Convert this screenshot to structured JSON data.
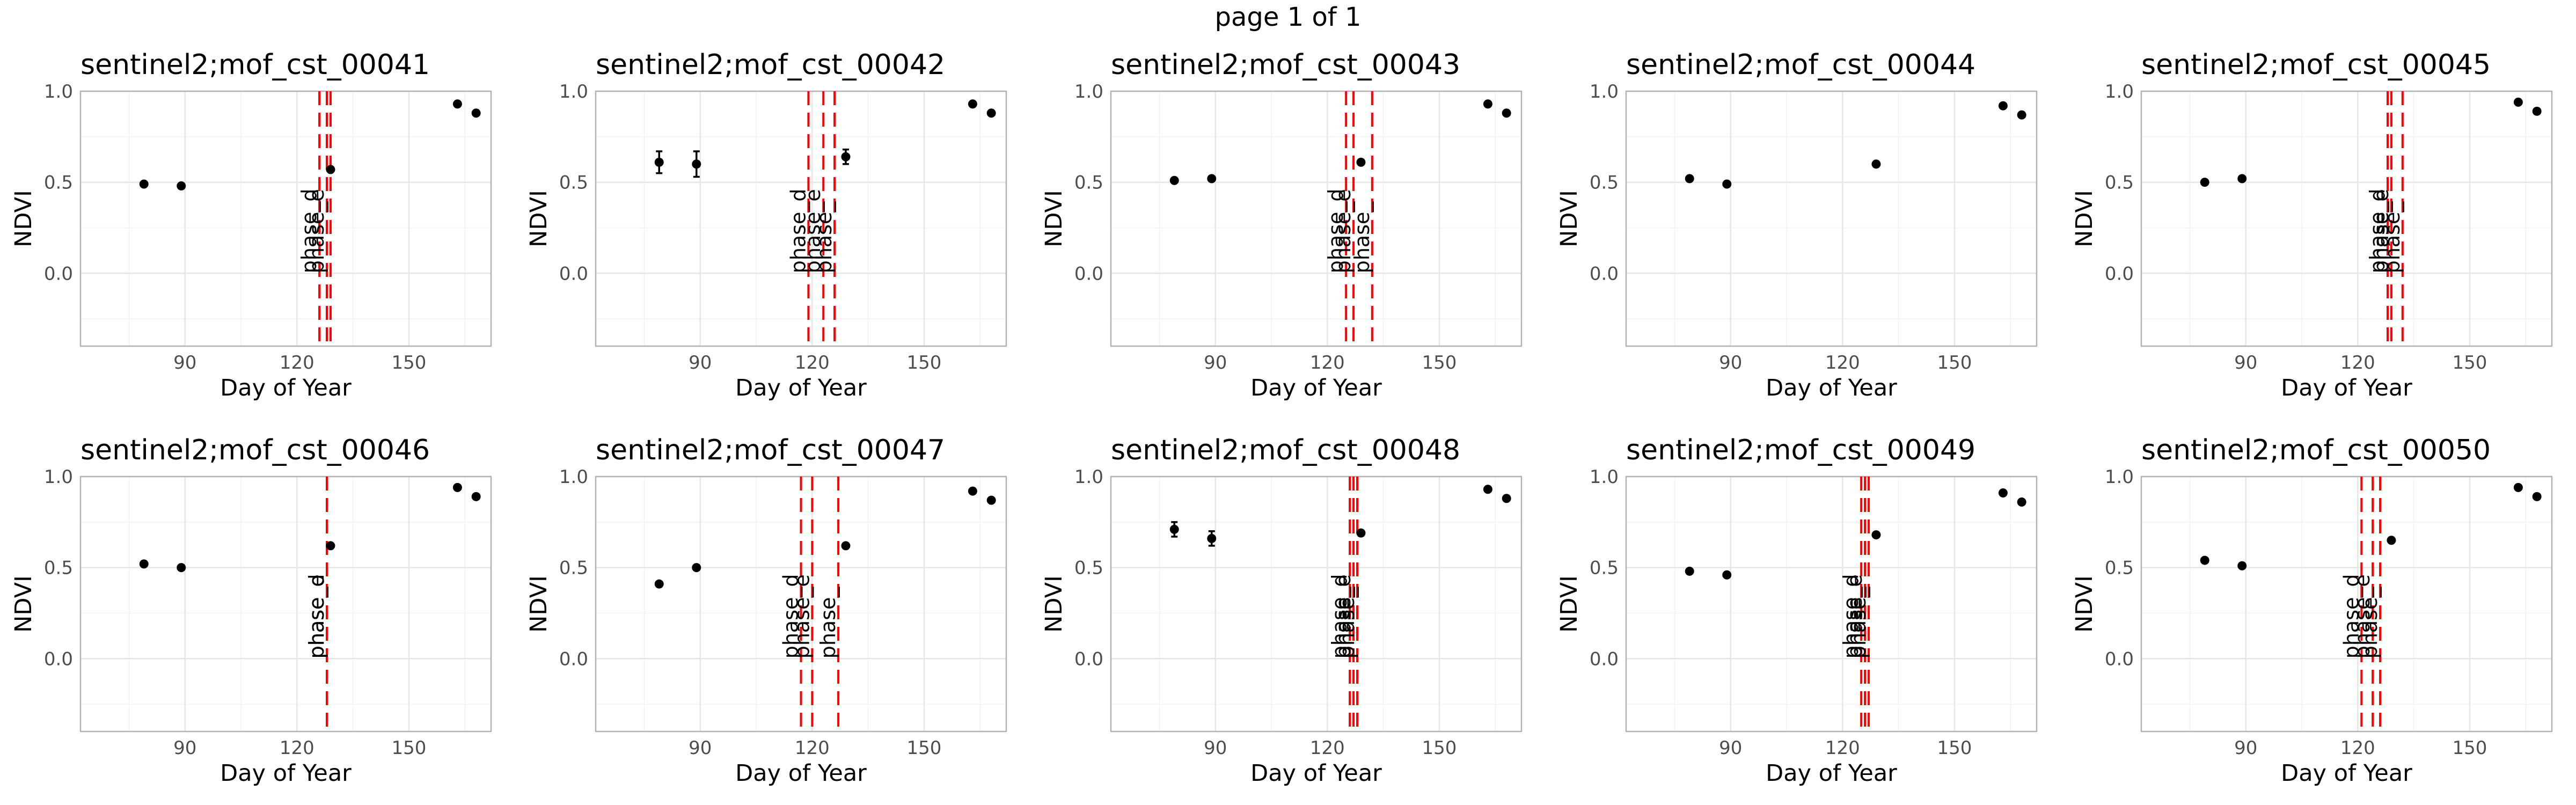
{
  "page_title": "page 1 of 1",
  "colors": {
    "vline": "#ff0000",
    "point": "#000000",
    "grid_major": "#e6e6e6",
    "grid_minor": "#f2f2f2",
    "panel_border": "#b3b3b3"
  },
  "chart_data": [
    {
      "type": "scatter",
      "title": "sentinel2;mof_cst_00041",
      "xlabel": "Day of Year",
      "ylabel": "NDVI",
      "xlim": [
        62,
        172
      ],
      "ylim": [
        -0.4,
        1.0
      ],
      "xticks": [
        90,
        120,
        150
      ],
      "yticks": [
        0.0,
        0.5,
        1.0
      ],
      "grid": true,
      "x": [
        79,
        89,
        129,
        163,
        168
      ],
      "y": [
        0.49,
        0.48,
        0.57,
        0.93,
        0.88
      ],
      "yerr": [
        0,
        0,
        0,
        0,
        0
      ],
      "vlines": [
        {
          "x": 126,
          "label": "phase_d"
        },
        {
          "x": 128,
          "label": "phase_e"
        },
        {
          "x": 129,
          "label": ""
        }
      ]
    },
    {
      "type": "scatter",
      "title": "sentinel2;mof_cst_00042",
      "xlabel": "Day of Year",
      "ylabel": "NDVI",
      "xlim": [
        62,
        172
      ],
      "ylim": [
        -0.4,
        1.0
      ],
      "xticks": [
        90,
        120,
        150
      ],
      "yticks": [
        0.0,
        0.5,
        1.0
      ],
      "grid": true,
      "x": [
        79,
        89,
        129,
        163,
        168
      ],
      "y": [
        0.61,
        0.6,
        0.64,
        0.93,
        0.88
      ],
      "yerr": [
        0.06,
        0.07,
        0.04,
        0,
        0
      ],
      "vlines": [
        {
          "x": 119,
          "label": "phase_d"
        },
        {
          "x": 123,
          "label": "phase_e"
        },
        {
          "x": 126,
          "label": "phase_"
        }
      ]
    },
    {
      "type": "scatter",
      "title": "sentinel2;mof_cst_00043",
      "xlabel": "Day of Year",
      "ylabel": "NDVI",
      "xlim": [
        62,
        172
      ],
      "ylim": [
        -0.4,
        1.0
      ],
      "xticks": [
        90,
        120,
        150
      ],
      "yticks": [
        0.0,
        0.5,
        1.0
      ],
      "grid": true,
      "x": [
        79,
        89,
        129,
        163,
        168
      ],
      "y": [
        0.51,
        0.52,
        0.61,
        0.93,
        0.88
      ],
      "yerr": [
        0,
        0,
        0,
        0,
        0
      ],
      "vlines": [
        {
          "x": 125,
          "label": "phase_d"
        },
        {
          "x": 127,
          "label": "phase_e"
        },
        {
          "x": 132,
          "label": "phase_"
        }
      ]
    },
    {
      "type": "scatter",
      "title": "sentinel2;mof_cst_00044",
      "xlabel": "Day of Year",
      "ylabel": "NDVI",
      "xlim": [
        62,
        172
      ],
      "ylim": [
        -0.4,
        1.0
      ],
      "xticks": [
        90,
        120,
        150
      ],
      "yticks": [
        0.0,
        0.5,
        1.0
      ],
      "grid": true,
      "x": [
        79,
        89,
        129,
        163,
        168
      ],
      "y": [
        0.52,
        0.49,
        0.6,
        0.92,
        0.87
      ],
      "yerr": [
        0,
        0,
        0,
        0,
        0
      ],
      "vlines": []
    },
    {
      "type": "scatter",
      "title": "sentinel2;mof_cst_00045",
      "xlabel": "Day of Year",
      "ylabel": "NDVI",
      "xlim": [
        62,
        172
      ],
      "ylim": [
        -0.4,
        1.0
      ],
      "xticks": [
        90,
        120,
        150
      ],
      "yticks": [
        0.0,
        0.5,
        1.0
      ],
      "grid": true,
      "x": [
        79,
        89,
        163,
        168
      ],
      "y": [
        0.5,
        0.52,
        0.94,
        0.89
      ],
      "yerr": [
        0,
        0,
        0,
        0
      ],
      "vlines": [
        {
          "x": 128,
          "label": "phase_d"
        },
        {
          "x": 129,
          "label": "phase_e"
        },
        {
          "x": 132,
          "label": "phase_"
        }
      ]
    },
    {
      "type": "scatter",
      "title": "sentinel2;mof_cst_00046",
      "xlabel": "Day of Year",
      "ylabel": "NDVI",
      "xlim": [
        62,
        172
      ],
      "ylim": [
        -0.4,
        1.0
      ],
      "xticks": [
        90,
        120,
        150
      ],
      "yticks": [
        0.0,
        0.5,
        1.0
      ],
      "grid": true,
      "x": [
        79,
        89,
        129,
        163,
        168
      ],
      "y": [
        0.52,
        0.5,
        0.62,
        0.94,
        0.89
      ],
      "yerr": [
        0,
        0,
        0,
        0,
        0
      ],
      "vlines": [
        {
          "x": 128,
          "label": "phase_d"
        },
        {
          "x": 128,
          "label": "phase_e"
        },
        {
          "x": 128,
          "label": "phase_"
        }
      ]
    },
    {
      "type": "scatter",
      "title": "sentinel2;mof_cst_00047",
      "xlabel": "Day of Year",
      "ylabel": "NDVI",
      "xlim": [
        62,
        172
      ],
      "ylim": [
        -0.4,
        1.0
      ],
      "xticks": [
        90,
        120,
        150
      ],
      "yticks": [
        0.0,
        0.5,
        1.0
      ],
      "grid": true,
      "x": [
        79,
        89,
        129,
        163,
        168
      ],
      "y": [
        0.41,
        0.5,
        0.62,
        0.92,
        0.87
      ],
      "yerr": [
        0,
        0,
        0,
        0,
        0
      ],
      "vlines": [
        {
          "x": 117,
          "label": "phase_d"
        },
        {
          "x": 120,
          "label": "phase_e"
        },
        {
          "x": 127,
          "label": "phase_"
        }
      ]
    },
    {
      "type": "scatter",
      "title": "sentinel2;mof_cst_00048",
      "xlabel": "Day of Year",
      "ylabel": "NDVI",
      "xlim": [
        62,
        172
      ],
      "ylim": [
        -0.4,
        1.0
      ],
      "xticks": [
        90,
        120,
        150
      ],
      "yticks": [
        0.0,
        0.5,
        1.0
      ],
      "grid": true,
      "x": [
        79,
        89,
        129,
        163,
        168
      ],
      "y": [
        0.71,
        0.66,
        0.69,
        0.93,
        0.88
      ],
      "yerr": [
        0.04,
        0.04,
        0,
        0,
        0
      ],
      "vlines": [
        {
          "x": 126,
          "label": "phase_d"
        },
        {
          "x": 127,
          "label": "phase_e"
        },
        {
          "x": 128,
          "label": "phase_"
        }
      ]
    },
    {
      "type": "scatter",
      "title": "sentinel2;mof_cst_00049",
      "xlabel": "Day of Year",
      "ylabel": "NDVI",
      "xlim": [
        62,
        172
      ],
      "ylim": [
        -0.4,
        1.0
      ],
      "xticks": [
        90,
        120,
        150
      ],
      "yticks": [
        0.0,
        0.5,
        1.0
      ],
      "grid": true,
      "x": [
        79,
        89,
        129,
        163,
        168
      ],
      "y": [
        0.48,
        0.46,
        0.68,
        0.91,
        0.86
      ],
      "yerr": [
        0,
        0,
        0,
        0,
        0
      ],
      "vlines": [
        {
          "x": 125,
          "label": "phase_d"
        },
        {
          "x": 126,
          "label": "phase_e"
        },
        {
          "x": 127,
          "label": "phase_"
        }
      ]
    },
    {
      "type": "scatter",
      "title": "sentinel2;mof_cst_00050",
      "xlabel": "Day of Year",
      "ylabel": "NDVI",
      "xlim": [
        62,
        172
      ],
      "ylim": [
        -0.4,
        1.0
      ],
      "xticks": [
        90,
        120,
        150
      ],
      "yticks": [
        0.0,
        0.5,
        1.0
      ],
      "grid": true,
      "x": [
        79,
        89,
        129,
        163,
        168
      ],
      "y": [
        0.54,
        0.51,
        0.65,
        0.94,
        0.89
      ],
      "yerr": [
        0,
        0,
        0,
        0,
        0
      ],
      "vlines": [
        {
          "x": 121,
          "label": "phase_d"
        },
        {
          "x": 124,
          "label": "phase_e"
        },
        {
          "x": 126,
          "label": "phase_"
        }
      ]
    }
  ]
}
